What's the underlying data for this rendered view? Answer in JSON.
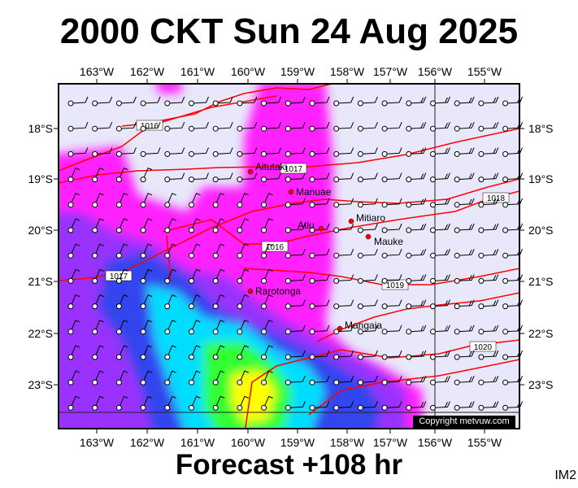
{
  "title": "2000 CKT Sun 24 Aug 2025",
  "subtitle": "Forecast +108 hr",
  "image_code": "IM2",
  "copyright": "Copyright metvuw.com",
  "map": {
    "lon_labels": [
      "163°W",
      "162°W",
      "161°W",
      "160°W",
      "159°W",
      "158°W",
      "157°W",
      "156°W",
      "155°W"
    ],
    "lat_labels": [
      "18°S",
      "19°S",
      "20°S",
      "21°S",
      "22°S",
      "23°S"
    ],
    "places": [
      {
        "name": "Aitutaki"
      },
      {
        "name": "Manuae"
      },
      {
        "name": "Atiu"
      },
      {
        "name": "Mitiaro"
      },
      {
        "name": "Mauke"
      },
      {
        "name": "Rarotonga"
      },
      {
        "name": "Mangaia"
      }
    ],
    "isobar_labels": [
      "1016",
      "1017",
      "1016",
      "1017",
      "1018",
      "1019",
      "1020"
    ],
    "colors": {
      "background": "#e8e8fa",
      "isobar": "#ff0000",
      "rain_light": "#ff22ff",
      "rain_mid": "#9933ff",
      "rain_heavy": "#3344ee",
      "rain_cyan": "#00ddff",
      "rain_green": "#33ff33",
      "rain_yellow": "#ffff00"
    }
  }
}
